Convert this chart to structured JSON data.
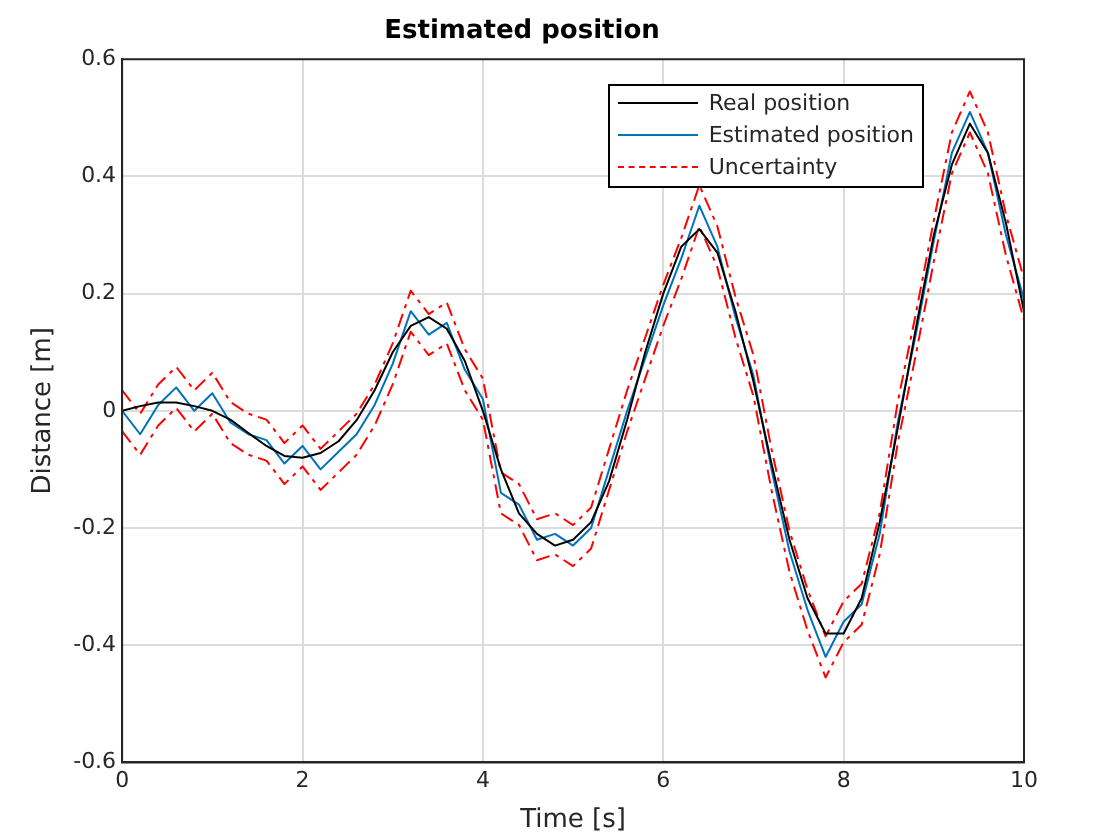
{
  "chart_data": {
    "type": "line",
    "title": "Estimated position",
    "xlabel": "Time [s]",
    "ylabel": "Distance [m]",
    "x": [
      0,
      0.2,
      0.4,
      0.6,
      0.8,
      1,
      1.2,
      1.4,
      1.6,
      1.8,
      2,
      2.2,
      2.4,
      2.6,
      2.8,
      3,
      3.2,
      3.4,
      3.6,
      3.8,
      4,
      4.2,
      4.4,
      4.6,
      4.8,
      5,
      5.2,
      5.4,
      5.6,
      5.8,
      6,
      6.2,
      6.4,
      6.6,
      6.8,
      7,
      7.2,
      7.4,
      7.6,
      7.8,
      8,
      8.2,
      8.4,
      8.6,
      8.8,
      9,
      9.2,
      9.4,
      9.6,
      9.8,
      10
    ],
    "series": [
      {
        "name": "Real position",
        "color": "#000000",
        "line_style": "solid",
        "values": [
          0,
          0.008,
          0.014,
          0.014,
          0.008,
          0,
          -0.015,
          -0.038,
          -0.06,
          -0.077,
          -0.08,
          -0.072,
          -0.052,
          -0.016,
          0.035,
          0.1,
          0.145,
          0.16,
          0.14,
          0.085,
          0,
          -0.1,
          -0.175,
          -0.21,
          -0.23,
          -0.22,
          -0.19,
          -0.12,
          -0.015,
          0.1,
          0.2,
          0.28,
          0.31,
          0.27,
          0.17,
          0.05,
          -0.09,
          -0.22,
          -0.32,
          -0.38,
          -0.38,
          -0.32,
          -0.19,
          -0.03,
          0.14,
          0.3,
          0.42,
          0.49,
          0.44,
          0.32,
          0.17
        ]
      },
      {
        "name": "Estimated position",
        "color": "#0072bd",
        "line_style": "solid",
        "values": [
          0,
          -0.04,
          0.01,
          0.04,
          0,
          0.03,
          -0.02,
          -0.04,
          -0.05,
          -0.09,
          -0.06,
          -0.1,
          -0.07,
          -0.04,
          0.01,
          0.08,
          0.17,
          0.13,
          0.15,
          0.07,
          0.02,
          -0.14,
          -0.16,
          -0.22,
          -0.21,
          -0.23,
          -0.2,
          -0.1,
          0,
          0.09,
          0.18,
          0.26,
          0.35,
          0.28,
          0.16,
          0.06,
          -0.1,
          -0.24,
          -0.34,
          -0.42,
          -0.36,
          -0.33,
          -0.21,
          -0.02,
          0.13,
          0.29,
          0.44,
          0.51,
          0.44,
          0.3,
          0.19
        ]
      },
      {
        "name": "Uncertainty",
        "color": "#ff0000",
        "line_style": "dashed",
        "values": [
          0.035,
          -0.005,
          0.045,
          0.075,
          0.035,
          0.065,
          0.015,
          -0.005,
          -0.015,
          -0.055,
          -0.025,
          -0.065,
          -0.035,
          -0.005,
          0.045,
          0.115,
          0.205,
          0.165,
          0.185,
          0.105,
          0.055,
          -0.105,
          -0.125,
          -0.185,
          -0.175,
          -0.195,
          -0.165,
          -0.065,
          0.035,
          0.125,
          0.215,
          0.295,
          0.385,
          0.315,
          0.195,
          0.095,
          -0.065,
          -0.205,
          -0.305,
          -0.385,
          -0.325,
          -0.295,
          -0.175,
          0.015,
          0.165,
          0.325,
          0.475,
          0.545,
          0.475,
          0.335,
          0.225
        ]
      },
      {
        "color": "#ff0000",
        "line_style": "dashed",
        "values": [
          -0.035,
          -0.075,
          -0.025,
          0.005,
          -0.035,
          -0.005,
          -0.055,
          -0.075,
          -0.085,
          -0.125,
          -0.095,
          -0.135,
          -0.105,
          -0.075,
          -0.025,
          0.045,
          0.135,
          0.095,
          0.115,
          0.035,
          -0.015,
          -0.175,
          -0.195,
          -0.255,
          -0.245,
          -0.265,
          -0.235,
          -0.135,
          -0.035,
          0.055,
          0.145,
          0.225,
          0.315,
          0.245,
          0.125,
          0.025,
          -0.135,
          -0.275,
          -0.375,
          -0.455,
          -0.395,
          -0.365,
          -0.245,
          -0.055,
          0.095,
          0.255,
          0.405,
          0.475,
          0.405,
          0.265,
          0.155
        ]
      }
    ],
    "xlim": [
      0,
      10
    ],
    "xticks": [
      0,
      2,
      4,
      6,
      8,
      10
    ],
    "ylim": [
      -0.6,
      0.6
    ],
    "yticks": [
      -0.6,
      -0.4,
      -0.2,
      0,
      0.2,
      0.4,
      0.6
    ],
    "grid": true,
    "legend": "top right",
    "marker": "none"
  }
}
